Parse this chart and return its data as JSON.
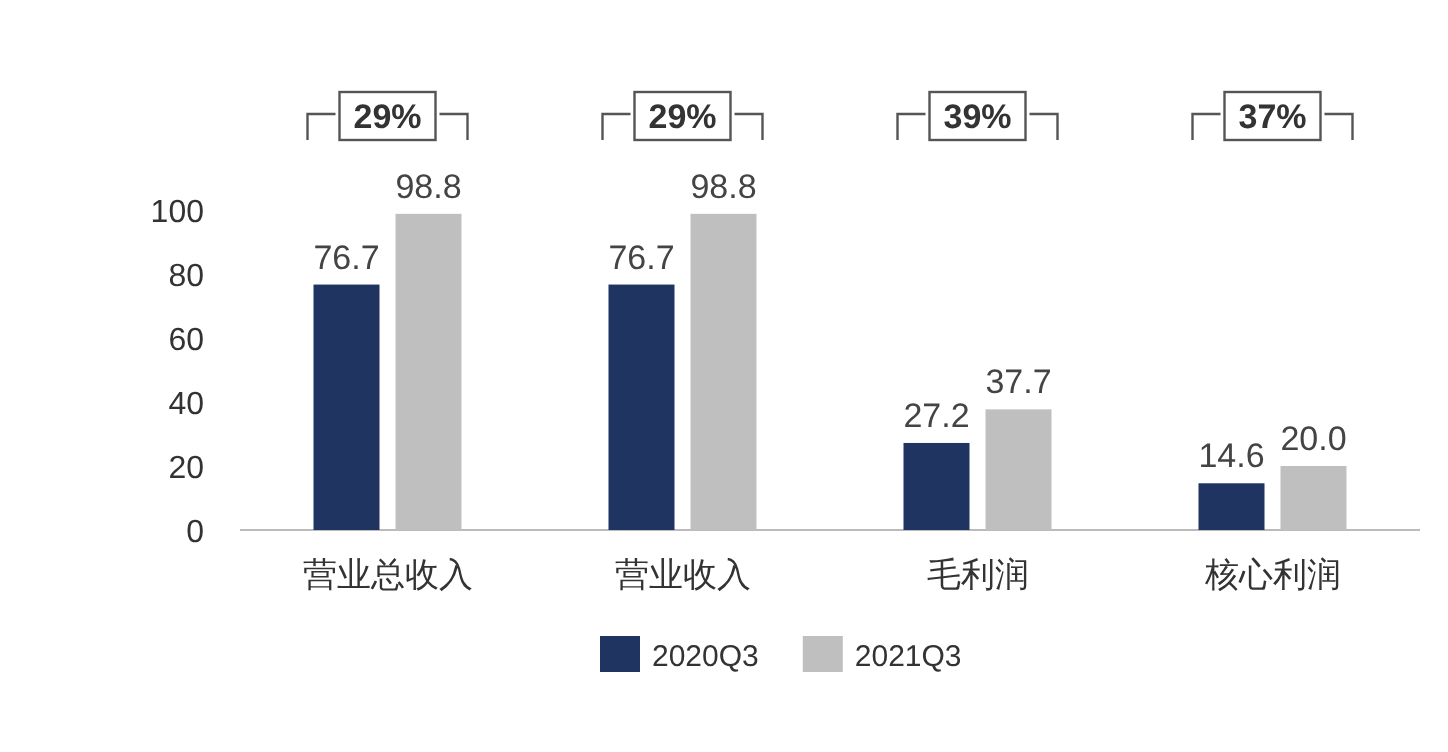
{
  "chart_data": {
    "type": "bar",
    "categories": [
      "营业总收入",
      "营业收入",
      "毛利润",
      "核心利润"
    ],
    "series": [
      {
        "name": "2020Q3",
        "color": "#1f3461",
        "values": [
          76.7,
          76.7,
          27.2,
          14.6
        ],
        "value_labels": [
          "76.7",
          "76.7",
          "27.2",
          "14.6"
        ]
      },
      {
        "name": "2021Q3",
        "color": "#bfbfbf",
        "values": [
          98.8,
          98.8,
          37.7,
          20.0
        ],
        "value_labels": [
          "98.8",
          "98.8",
          "37.7",
          "20.0"
        ]
      }
    ],
    "ylim": [
      0,
      100
    ],
    "yticks": [
      0,
      20,
      40,
      60,
      80,
      100
    ],
    "legend": "bottom",
    "annotations": [
      "29%",
      "29%",
      "39%",
      "37%"
    ]
  }
}
